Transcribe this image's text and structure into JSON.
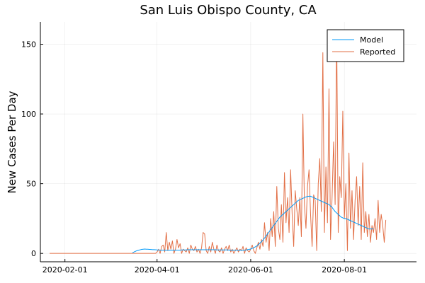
{
  "chart_data": {
    "type": "line",
    "title": "San Luis Obispo County, CA",
    "xlabel": "",
    "ylabel": "New Cases Per Day",
    "x_start": "2020-01-22",
    "x_step_days": 1,
    "xlim": [
      "2020-01-16",
      "2020-09-17"
    ],
    "ylim": [
      -6,
      166
    ],
    "xticks": [
      {
        "date": "2020-02-01",
        "label": "2020-02-01"
      },
      {
        "date": "2020-04-01",
        "label": "2020-04-01"
      },
      {
        "date": "2020-06-01",
        "label": "2020-06-01"
      },
      {
        "date": "2020-08-01",
        "label": "2020-08-01"
      }
    ],
    "yticks": [
      {
        "value": 0,
        "label": "0"
      },
      {
        "value": 50,
        "label": "50"
      },
      {
        "value": 100,
        "label": "100"
      },
      {
        "value": 150,
        "label": "150"
      }
    ],
    "grid": true,
    "legend": "top-right",
    "series": [
      {
        "name": "Model",
        "color": "#009AFA",
        "x_start": "2020-03-16",
        "values": [
          0.5,
          1,
          1.5,
          2,
          2.3,
          2.6,
          2.9,
          3,
          3.1,
          3,
          3,
          2.9,
          2.8,
          2.7,
          2.7,
          2.6,
          2.5,
          2.5,
          2.4,
          2.4,
          2.4,
          2.3,
          2.3,
          2.3,
          2.3,
          2.3,
          2.3,
          2.3,
          2.4,
          2.4,
          2.4,
          2.4,
          2.5,
          2.5,
          2.5,
          2.5,
          2.6,
          2.6,
          2.6,
          2.6,
          2.6,
          2.6,
          2.6,
          2.6,
          2.6,
          2.6,
          2.6,
          2.6,
          2.6,
          2.6,
          2.6,
          2.6,
          2.6,
          2.6,
          2.6,
          2.5,
          2.5,
          2.5,
          2.5,
          2.5,
          2.5,
          2.5,
          2.5,
          2.4,
          2.4,
          2.4,
          2.4,
          2.4,
          2.3,
          2.3,
          2.3,
          2.3,
          2.3,
          2.4,
          2.5,
          2.7,
          2.9,
          3.2,
          3.6,
          4.1,
          4.7,
          5.4,
          6.3,
          7.3,
          8.4,
          9.6,
          11,
          12.5,
          14,
          15.5,
          17,
          18.5,
          20,
          21.5,
          23,
          24.5,
          26,
          27,
          28,
          29,
          30,
          31,
          32,
          33,
          34,
          35,
          36,
          37,
          38,
          38.5,
          39,
          39.5,
          40,
          40.5,
          40.8,
          41,
          41,
          40.5,
          40,
          39.5,
          39,
          38.5,
          38,
          37.5,
          37,
          36.5,
          36,
          35.5,
          35,
          34,
          33,
          31.5,
          30,
          29,
          28,
          27,
          26,
          25.5,
          25,
          25,
          24.5,
          24,
          23.5,
          23,
          22.5,
          22,
          21.5,
          21,
          20.5,
          20,
          19.5,
          19,
          18.5,
          18,
          17.5,
          17.5,
          17.5,
          17.5
        ]
      },
      {
        "name": "Reported",
        "color": "#E26F46",
        "values": [
          0,
          0,
          0,
          0,
          0,
          0,
          0,
          0,
          0,
          0,
          0,
          0,
          0,
          0,
          0,
          0,
          0,
          0,
          0,
          0,
          0,
          0,
          0,
          0,
          0,
          0,
          0,
          0,
          0,
          0,
          0,
          0,
          0,
          0,
          0,
          0,
          0,
          0,
          0,
          0,
          0,
          0,
          0,
          0,
          0,
          0,
          0,
          0,
          0,
          0,
          0,
          0,
          0,
          0,
          0,
          0,
          0,
          0,
          0,
          0,
          0,
          0,
          0,
          0,
          0,
          0,
          0,
          0,
          0,
          0,
          1,
          3,
          0,
          5,
          6,
          1,
          15,
          2,
          8,
          3,
          9,
          0,
          3,
          10,
          4,
          7,
          0,
          3,
          2,
          1,
          4,
          0,
          6,
          3,
          2,
          5,
          1,
          3,
          0,
          4,
          15,
          14,
          2,
          0,
          5,
          1,
          8,
          3,
          0,
          6,
          2,
          1,
          4,
          0,
          3,
          5,
          2,
          6,
          1,
          3,
          0,
          2,
          4,
          1,
          3,
          2,
          5,
          0,
          4,
          2,
          1,
          3,
          6,
          2,
          0,
          4,
          8,
          3,
          10,
          5,
          22,
          8,
          15,
          2,
          25,
          12,
          30,
          5,
          48,
          18,
          10,
          35,
          8,
          58,
          22,
          40,
          15,
          60,
          28,
          5,
          45,
          32,
          20,
          40,
          12,
          100,
          35,
          18,
          48,
          60,
          28,
          5,
          42,
          38,
          2,
          50,
          68,
          30,
          144,
          15,
          62,
          22,
          118,
          10,
          40,
          80,
          35,
          160,
          15,
          55,
          40,
          102,
          25,
          50,
          2,
          72,
          18,
          45,
          10,
          38,
          55,
          20,
          48,
          10,
          65,
          15,
          30,
          12,
          28,
          8,
          20,
          15,
          25,
          10,
          38,
          15,
          28,
          20,
          8,
          24
        ]
      }
    ]
  }
}
